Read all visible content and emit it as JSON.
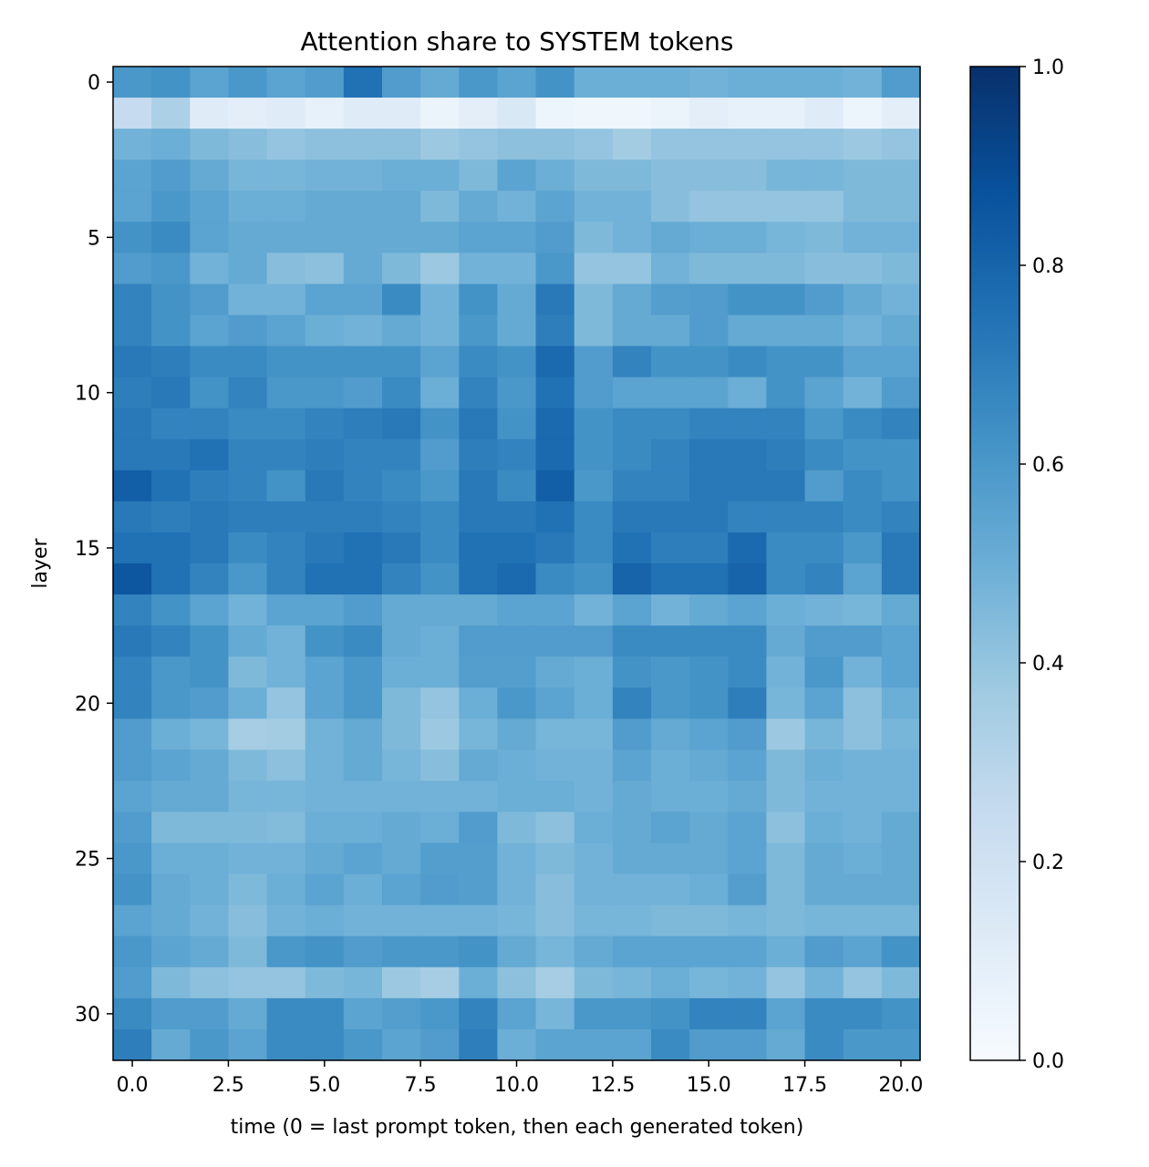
{
  "chart_data": {
    "type": "heatmap",
    "title": "Attention share to SYSTEM tokens",
    "xlabel": "time (0 = last prompt token, then each generated token)",
    "ylabel": "layer",
    "x": [
      0,
      1,
      2,
      3,
      4,
      5,
      6,
      7,
      8,
      9,
      10,
      11,
      12,
      13,
      14,
      15,
      16,
      17,
      18,
      19,
      20
    ],
    "y": [
      0,
      1,
      2,
      3,
      4,
      5,
      6,
      7,
      8,
      9,
      10,
      11,
      12,
      13,
      14,
      15,
      16,
      17,
      18,
      19,
      20,
      21,
      22,
      23,
      24,
      25,
      26,
      27,
      28,
      29,
      30,
      31
    ],
    "xlim": [
      -0.5,
      20.5
    ],
    "ylim": [
      31.5,
      -0.5
    ],
    "xticks": [
      "0.0",
      "2.5",
      "5.0",
      "7.5",
      "10.0",
      "12.5",
      "15.0",
      "17.5",
      "20.0"
    ],
    "yticks": [
      "0",
      "5",
      "10",
      "15",
      "20",
      "25",
      "30"
    ],
    "colormap": "Blues",
    "colorbar": {
      "range": [
        0,
        1
      ],
      "ticks": [
        "0.0",
        "0.2",
        "0.4",
        "0.6",
        "0.8",
        "1.0"
      ]
    },
    "grid": false,
    "values": [
      [
        0.6,
        0.62,
        0.55,
        0.6,
        0.55,
        0.58,
        0.75,
        0.58,
        0.52,
        0.6,
        0.55,
        0.62,
        0.5,
        0.5,
        0.5,
        0.48,
        0.5,
        0.5,
        0.5,
        0.48,
        0.58
      ],
      [
        0.25,
        0.33,
        0.12,
        0.1,
        0.12,
        0.08,
        0.12,
        0.12,
        0.06,
        0.1,
        0.15,
        0.05,
        0.04,
        0.04,
        0.06,
        0.1,
        0.08,
        0.08,
        0.12,
        0.05,
        0.1
      ],
      [
        0.48,
        0.5,
        0.45,
        0.43,
        0.4,
        0.42,
        0.42,
        0.42,
        0.38,
        0.4,
        0.42,
        0.42,
        0.4,
        0.36,
        0.4,
        0.4,
        0.4,
        0.4,
        0.4,
        0.38,
        0.4
      ],
      [
        0.55,
        0.58,
        0.52,
        0.47,
        0.47,
        0.48,
        0.48,
        0.5,
        0.5,
        0.45,
        0.55,
        0.5,
        0.45,
        0.45,
        0.43,
        0.43,
        0.43,
        0.47,
        0.47,
        0.45,
        0.45
      ],
      [
        0.55,
        0.6,
        0.55,
        0.5,
        0.5,
        0.52,
        0.52,
        0.52,
        0.45,
        0.52,
        0.48,
        0.55,
        0.48,
        0.48,
        0.43,
        0.4,
        0.4,
        0.4,
        0.4,
        0.45,
        0.45
      ],
      [
        0.62,
        0.65,
        0.55,
        0.52,
        0.52,
        0.52,
        0.52,
        0.52,
        0.52,
        0.55,
        0.55,
        0.58,
        0.45,
        0.48,
        0.52,
        0.5,
        0.5,
        0.47,
        0.45,
        0.48,
        0.48
      ],
      [
        0.58,
        0.6,
        0.48,
        0.52,
        0.43,
        0.42,
        0.52,
        0.45,
        0.38,
        0.48,
        0.48,
        0.6,
        0.4,
        0.4,
        0.48,
        0.45,
        0.45,
        0.45,
        0.43,
        0.43,
        0.45
      ],
      [
        0.68,
        0.62,
        0.58,
        0.48,
        0.48,
        0.55,
        0.55,
        0.65,
        0.48,
        0.62,
        0.52,
        0.72,
        0.45,
        0.52,
        0.57,
        0.58,
        0.62,
        0.62,
        0.58,
        0.52,
        0.48
      ],
      [
        0.68,
        0.62,
        0.55,
        0.58,
        0.55,
        0.5,
        0.48,
        0.52,
        0.48,
        0.6,
        0.52,
        0.7,
        0.45,
        0.52,
        0.52,
        0.58,
        0.52,
        0.52,
        0.52,
        0.48,
        0.52
      ],
      [
        0.72,
        0.7,
        0.65,
        0.65,
        0.62,
        0.62,
        0.62,
        0.62,
        0.55,
        0.65,
        0.62,
        0.78,
        0.58,
        0.68,
        0.62,
        0.62,
        0.65,
        0.62,
        0.62,
        0.55,
        0.55
      ],
      [
        0.7,
        0.72,
        0.62,
        0.68,
        0.6,
        0.6,
        0.58,
        0.65,
        0.5,
        0.68,
        0.6,
        0.75,
        0.58,
        0.55,
        0.55,
        0.55,
        0.5,
        0.62,
        0.55,
        0.48,
        0.58
      ],
      [
        0.72,
        0.68,
        0.68,
        0.65,
        0.65,
        0.68,
        0.7,
        0.72,
        0.62,
        0.72,
        0.62,
        0.78,
        0.62,
        0.65,
        0.65,
        0.68,
        0.68,
        0.68,
        0.6,
        0.65,
        0.68
      ],
      [
        0.72,
        0.72,
        0.75,
        0.68,
        0.68,
        0.7,
        0.68,
        0.68,
        0.58,
        0.7,
        0.68,
        0.78,
        0.62,
        0.65,
        0.68,
        0.72,
        0.72,
        0.7,
        0.65,
        0.62,
        0.62
      ],
      [
        0.82,
        0.75,
        0.7,
        0.68,
        0.62,
        0.72,
        0.68,
        0.65,
        0.6,
        0.72,
        0.65,
        0.82,
        0.6,
        0.68,
        0.68,
        0.72,
        0.72,
        0.72,
        0.58,
        0.65,
        0.62
      ],
      [
        0.72,
        0.7,
        0.72,
        0.7,
        0.7,
        0.7,
        0.7,
        0.68,
        0.65,
        0.72,
        0.72,
        0.75,
        0.65,
        0.72,
        0.72,
        0.72,
        0.68,
        0.68,
        0.68,
        0.65,
        0.68
      ],
      [
        0.75,
        0.75,
        0.72,
        0.65,
        0.68,
        0.72,
        0.75,
        0.72,
        0.65,
        0.75,
        0.75,
        0.72,
        0.65,
        0.75,
        0.7,
        0.7,
        0.78,
        0.65,
        0.65,
        0.6,
        0.72
      ],
      [
        0.85,
        0.75,
        0.68,
        0.6,
        0.68,
        0.75,
        0.75,
        0.68,
        0.62,
        0.75,
        0.78,
        0.65,
        0.62,
        0.8,
        0.75,
        0.75,
        0.8,
        0.65,
        0.68,
        0.55,
        0.72
      ],
      [
        0.68,
        0.62,
        0.55,
        0.48,
        0.55,
        0.55,
        0.58,
        0.52,
        0.52,
        0.52,
        0.55,
        0.55,
        0.48,
        0.55,
        0.48,
        0.52,
        0.55,
        0.5,
        0.48,
        0.47,
        0.52
      ],
      [
        0.72,
        0.68,
        0.62,
        0.52,
        0.48,
        0.62,
        0.65,
        0.52,
        0.5,
        0.58,
        0.58,
        0.58,
        0.58,
        0.65,
        0.65,
        0.65,
        0.65,
        0.52,
        0.58,
        0.58,
        0.55
      ],
      [
        0.68,
        0.6,
        0.62,
        0.45,
        0.48,
        0.55,
        0.6,
        0.5,
        0.5,
        0.57,
        0.57,
        0.52,
        0.5,
        0.62,
        0.6,
        0.62,
        0.65,
        0.48,
        0.6,
        0.48,
        0.55
      ],
      [
        0.68,
        0.6,
        0.58,
        0.5,
        0.4,
        0.55,
        0.6,
        0.45,
        0.4,
        0.5,
        0.6,
        0.55,
        0.5,
        0.68,
        0.6,
        0.62,
        0.7,
        0.47,
        0.55,
        0.42,
        0.5
      ],
      [
        0.58,
        0.5,
        0.47,
        0.35,
        0.36,
        0.48,
        0.52,
        0.45,
        0.38,
        0.47,
        0.52,
        0.47,
        0.47,
        0.58,
        0.52,
        0.55,
        0.58,
        0.38,
        0.47,
        0.42,
        0.47
      ],
      [
        0.58,
        0.55,
        0.52,
        0.45,
        0.42,
        0.48,
        0.52,
        0.47,
        0.43,
        0.52,
        0.5,
        0.48,
        0.48,
        0.55,
        0.5,
        0.52,
        0.55,
        0.45,
        0.5,
        0.48,
        0.48
      ],
      [
        0.55,
        0.52,
        0.52,
        0.47,
        0.47,
        0.48,
        0.48,
        0.48,
        0.48,
        0.48,
        0.5,
        0.5,
        0.48,
        0.52,
        0.5,
        0.5,
        0.52,
        0.45,
        0.48,
        0.48,
        0.48
      ],
      [
        0.58,
        0.45,
        0.45,
        0.45,
        0.44,
        0.5,
        0.5,
        0.52,
        0.5,
        0.58,
        0.45,
        0.42,
        0.5,
        0.52,
        0.55,
        0.52,
        0.55,
        0.42,
        0.5,
        0.48,
        0.52
      ],
      [
        0.6,
        0.5,
        0.5,
        0.48,
        0.48,
        0.52,
        0.55,
        0.52,
        0.57,
        0.57,
        0.48,
        0.45,
        0.48,
        0.52,
        0.52,
        0.52,
        0.55,
        0.45,
        0.52,
        0.5,
        0.52
      ],
      [
        0.62,
        0.52,
        0.5,
        0.45,
        0.5,
        0.55,
        0.5,
        0.55,
        0.58,
        0.57,
        0.48,
        0.43,
        0.48,
        0.48,
        0.48,
        0.5,
        0.57,
        0.45,
        0.52,
        0.52,
        0.52
      ],
      [
        0.55,
        0.52,
        0.48,
        0.43,
        0.48,
        0.5,
        0.48,
        0.48,
        0.48,
        0.48,
        0.47,
        0.43,
        0.47,
        0.47,
        0.45,
        0.45,
        0.47,
        0.45,
        0.47,
        0.47,
        0.47
      ],
      [
        0.6,
        0.55,
        0.52,
        0.45,
        0.6,
        0.62,
        0.58,
        0.6,
        0.6,
        0.62,
        0.52,
        0.47,
        0.52,
        0.55,
        0.55,
        0.55,
        0.55,
        0.5,
        0.58,
        0.55,
        0.62
      ],
      [
        0.58,
        0.45,
        0.42,
        0.4,
        0.4,
        0.45,
        0.47,
        0.38,
        0.35,
        0.5,
        0.42,
        0.35,
        0.45,
        0.47,
        0.5,
        0.47,
        0.48,
        0.4,
        0.48,
        0.4,
        0.45
      ],
      [
        0.65,
        0.58,
        0.58,
        0.52,
        0.65,
        0.65,
        0.55,
        0.57,
        0.6,
        0.68,
        0.55,
        0.47,
        0.6,
        0.6,
        0.62,
        0.68,
        0.68,
        0.55,
        0.65,
        0.65,
        0.62
      ],
      [
        0.7,
        0.52,
        0.6,
        0.55,
        0.65,
        0.65,
        0.6,
        0.55,
        0.58,
        0.7,
        0.5,
        0.55,
        0.55,
        0.55,
        0.65,
        0.58,
        0.58,
        0.52,
        0.65,
        0.6,
        0.6
      ]
    ]
  }
}
